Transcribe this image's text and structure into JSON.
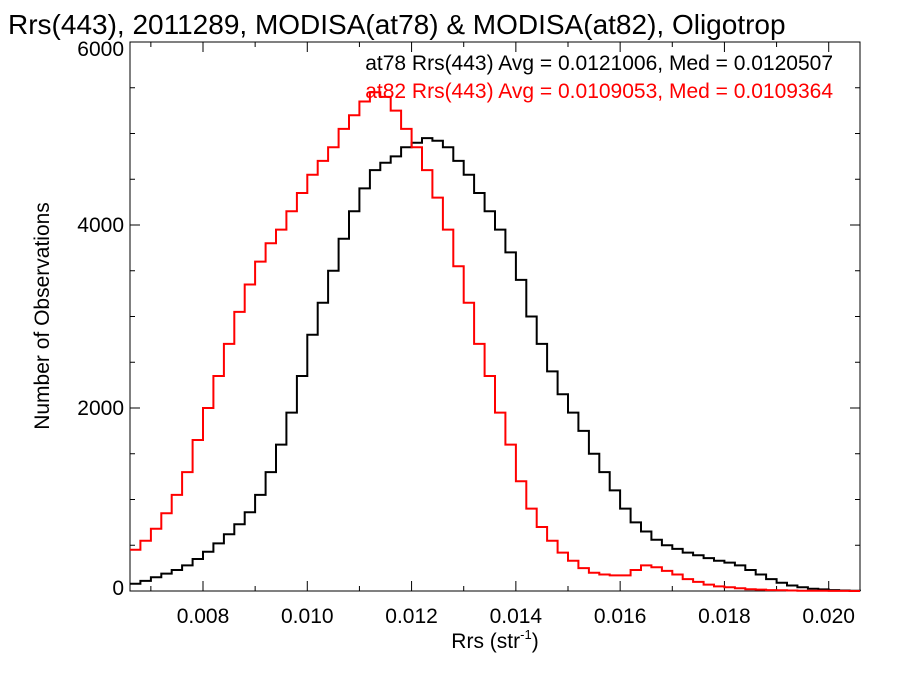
{
  "chart_data": {
    "type": "line",
    "title": "Rrs(443), 2011289, MODISA(at78) & MODISA(at82), Oligotrop",
    "xlabel": "Rrs (str",
    "xlabel_sup": "-1",
    "xlabel_close": ")",
    "ylabel": "Number of Observations",
    "xlim": [
      0.0066,
      0.0206
    ],
    "ylim": [
      0,
      6000
    ],
    "x_ticks": [
      0.008,
      0.01,
      0.012,
      0.014,
      0.016,
      0.018,
      0.02
    ],
    "x_tick_labels": [
      "0.008",
      "0.010",
      "0.012",
      "0.014",
      "0.016",
      "0.018",
      "0.020"
    ],
    "y_ticks": [
      0,
      2000,
      4000,
      6000
    ],
    "y_tick_labels": [
      "0",
      "2000",
      "4000",
      "6000"
    ],
    "grid": false,
    "legend_placement": "top-right",
    "annotations": [
      {
        "text": "at78 Rrs(443) Avg = 0.0121006, Med = 0.0120507",
        "color": "#000000"
      },
      {
        "text": "at82 Rrs(443) Avg = 0.0109053, Med = 0.0109364",
        "color": "#ff0000"
      }
    ],
    "series": [
      {
        "name": "at78",
        "color": "#000000",
        "x": [
          0.0066,
          0.0068,
          0.007,
          0.0072,
          0.0074,
          0.0076,
          0.0078,
          0.008,
          0.0082,
          0.0084,
          0.0086,
          0.0088,
          0.009,
          0.0092,
          0.0094,
          0.0096,
          0.0098,
          0.01,
          0.0102,
          0.0104,
          0.0106,
          0.0108,
          0.011,
          0.0112,
          0.0114,
          0.0116,
          0.0118,
          0.012,
          0.0122,
          0.0124,
          0.0126,
          0.0128,
          0.013,
          0.0132,
          0.0134,
          0.0136,
          0.0138,
          0.014,
          0.0142,
          0.0144,
          0.0146,
          0.0148,
          0.015,
          0.0152,
          0.0154,
          0.0156,
          0.0158,
          0.016,
          0.0162,
          0.0164,
          0.0166,
          0.0168,
          0.017,
          0.0172,
          0.0174,
          0.0176,
          0.0178,
          0.018,
          0.0182,
          0.0184,
          0.0186,
          0.0188,
          0.019,
          0.0192,
          0.0194,
          0.0196,
          0.0198,
          0.02,
          0.0202,
          0.0204,
          0.0206
        ],
        "y": [
          80,
          110,
          150,
          190,
          230,
          280,
          350,
          430,
          520,
          620,
          730,
          860,
          1050,
          1300,
          1600,
          1950,
          2350,
          2800,
          3150,
          3500,
          3850,
          4150,
          4400,
          4600,
          4680,
          4750,
          4850,
          4900,
          4950,
          4920,
          4850,
          4700,
          4550,
          4350,
          4150,
          3950,
          3700,
          3400,
          3000,
          2700,
          2400,
          2150,
          1950,
          1750,
          1500,
          1300,
          1100,
          900,
          750,
          650,
          560,
          500,
          460,
          420,
          390,
          360,
          330,
          310,
          280,
          230,
          180,
          130,
          90,
          60,
          40,
          25,
          18,
          10,
          6,
          3,
          2
        ]
      },
      {
        "name": "at82",
        "color": "#ff0000",
        "x": [
          0.0066,
          0.0068,
          0.007,
          0.0072,
          0.0074,
          0.0076,
          0.0078,
          0.008,
          0.0082,
          0.0084,
          0.0086,
          0.0088,
          0.009,
          0.0092,
          0.0094,
          0.0096,
          0.0098,
          0.01,
          0.0102,
          0.0104,
          0.0106,
          0.0108,
          0.011,
          0.0112,
          0.0114,
          0.0116,
          0.0118,
          0.012,
          0.0122,
          0.0124,
          0.0126,
          0.0128,
          0.013,
          0.0132,
          0.0134,
          0.0136,
          0.0138,
          0.014,
          0.0142,
          0.0144,
          0.0146,
          0.0148,
          0.015,
          0.0152,
          0.0154,
          0.0156,
          0.0158,
          0.016,
          0.0162,
          0.0164,
          0.0166,
          0.0168,
          0.017,
          0.0172,
          0.0174,
          0.0176,
          0.0178,
          0.018,
          0.0182,
          0.0184,
          0.0186,
          0.0188,
          0.019,
          0.0192,
          0.0194,
          0.0196,
          0.0198,
          0.02,
          0.0202,
          0.0204,
          0.0206
        ],
        "y": [
          450,
          550,
          680,
          850,
          1050,
          1300,
          1650,
          2000,
          2350,
          2700,
          3050,
          3350,
          3600,
          3800,
          3950,
          4150,
          4350,
          4550,
          4700,
          4850,
          5050,
          5200,
          5350,
          5450,
          5400,
          5250,
          5050,
          4850,
          4600,
          4300,
          3950,
          3550,
          3150,
          2700,
          2350,
          1950,
          1600,
          1200,
          900,
          700,
          550,
          420,
          330,
          250,
          200,
          180,
          170,
          170,
          230,
          280,
          260,
          220,
          180,
          130,
          100,
          70,
          50,
          40,
          30,
          20,
          15,
          10,
          8,
          5,
          3,
          2,
          2,
          1,
          1,
          0,
          0
        ]
      }
    ]
  }
}
